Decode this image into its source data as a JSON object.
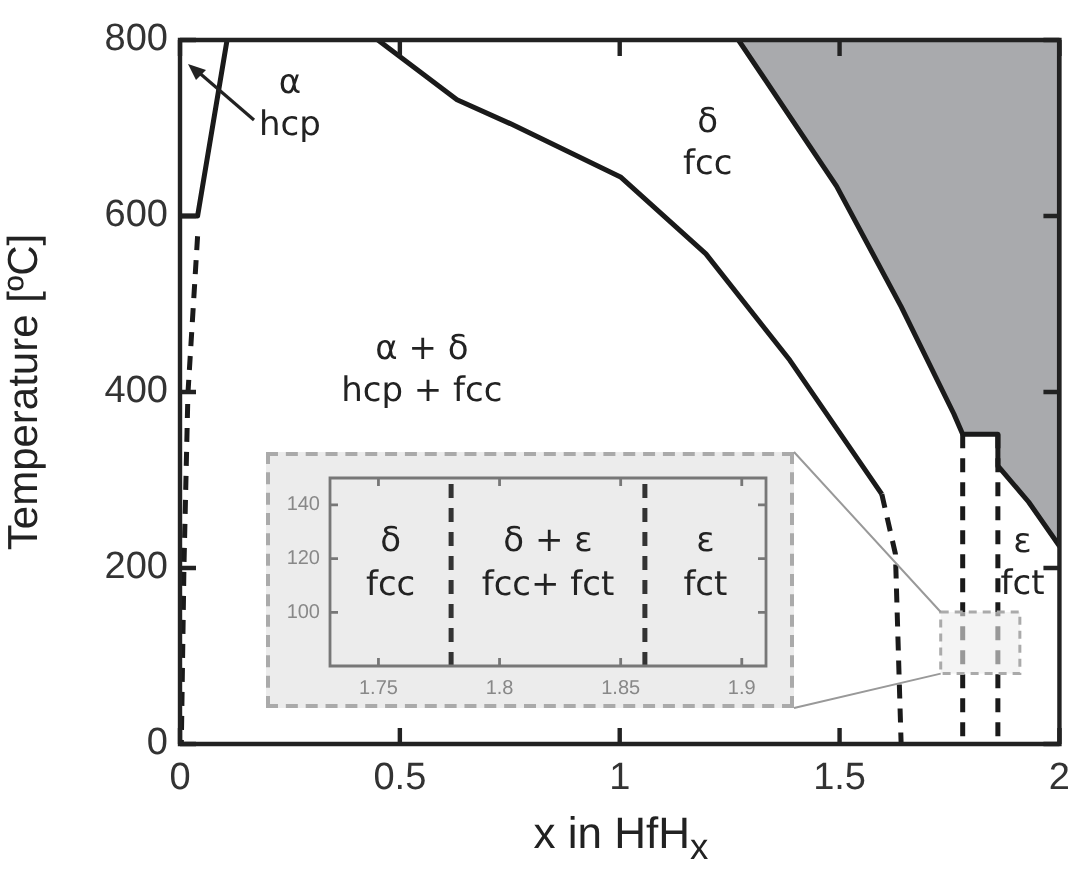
{
  "chart_data": [
    {
      "type": "line",
      "xlabel": "x in HfH$_{x}$",
      "ylabel": "Temperature [ºC]",
      "xlim": [
        0,
        2
      ],
      "xticks": [
        0,
        0.5,
        1,
        1.5,
        2
      ],
      "ylim": [
        0,
        800
      ],
      "yticks": [
        0,
        200,
        400,
        600,
        800
      ],
      "marker": "none",
      "series": [
        {
          "color": "#1a1a1a",
          "line_style": "solid",
          "x": [
            0,
            0.04,
            0.107
          ],
          "values": [
            600,
            600,
            800
          ]
        },
        {
          "color": "#1a1a1a",
          "line_style": "dashed",
          "x": [
            0.04,
            0.018,
            0.009,
            0.003
          ],
          "values": [
            577,
            398,
            202,
            0
          ]
        },
        {
          "color": "#1a1a1a",
          "line_style": "solid",
          "x": [
            0.45,
            0.63,
            0.751,
            1.003,
            1.196,
            1.387,
            1.596
          ],
          "values": [
            800,
            732,
            705,
            644,
            557,
            436,
            284
          ]
        },
        {
          "color": "#1a1a1a",
          "line_style": "dashed",
          "x": [
            1.596,
            1.627,
            1.64
          ],
          "values": [
            284,
            216,
            0
          ]
        },
        {
          "color": "#1a1a1a",
          "line_style": "dashed",
          "x": [
            1.78,
            1.78
          ],
          "values": [
            352,
            0
          ]
        },
        {
          "color": "#1a1a1a",
          "line_style": "dashed",
          "x": [
            1.86,
            1.86
          ],
          "values": [
            352,
            0
          ]
        },
        {
          "type": "area",
          "color": "#a9aaad",
          "x": [
            1.27,
            1.493,
            1.64,
            1.76,
            1.78,
            1.86,
            1.86,
            1.93,
            2.0,
            2.0
          ],
          "values": [
            800,
            634,
            497,
            375,
            352,
            352,
            316,
            275,
            225,
            800
          ]
        }
      ],
      "annotations": [
        "α\nhcp",
        "δ\nfcc",
        "α + δ\nhcp + fcc",
        "ε\nfct"
      ]
    },
    {
      "type": "line",
      "xlim": [
        1.73,
        1.91
      ],
      "xticks": [
        1.75,
        1.8,
        1.85,
        1.9
      ],
      "ylim": [
        80,
        150
      ],
      "yticks": [
        100,
        120,
        140
      ],
      "marker": "none",
      "series": [
        {
          "color": "#333333",
          "line_style": "dashed",
          "x": [
            1.78,
            1.78
          ],
          "values": [
            80,
            150
          ]
        },
        {
          "color": "#333333",
          "line_style": "dashed",
          "x": [
            1.86,
            1.86
          ],
          "values": [
            80,
            150
          ]
        }
      ],
      "annotations": [
        "δ\nfcc",
        "δ + ε\nfcc+ fct",
        "ε\nfct"
      ]
    }
  ]
}
